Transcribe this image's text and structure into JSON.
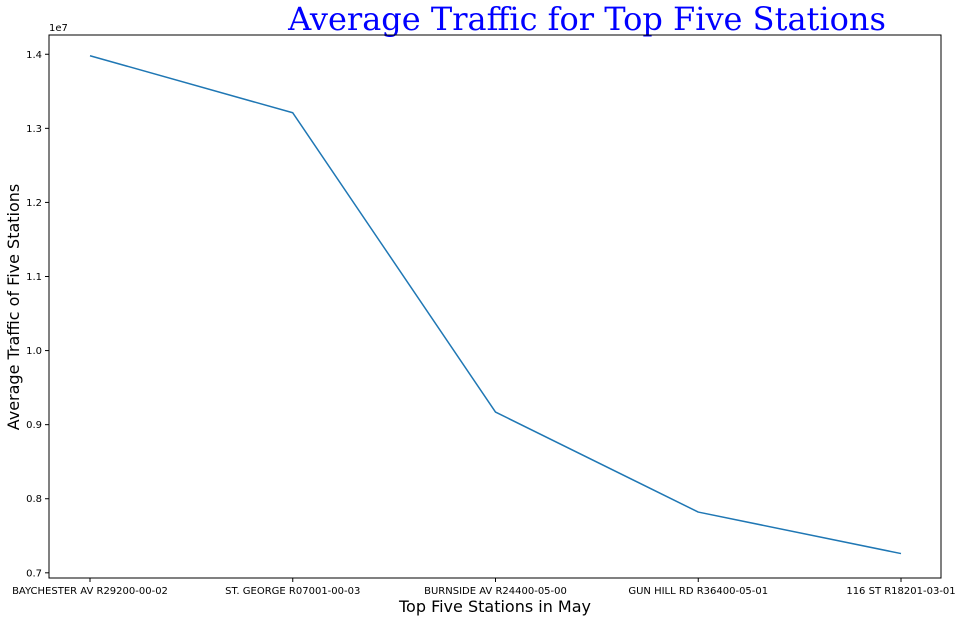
{
  "chart_data": {
    "type": "line",
    "title": "Average Traffic for Top Five Stations",
    "title_color": "#0000ff",
    "xlabel": "Top Five Stations in May",
    "ylabel": "Average Traffic of Five Stations",
    "y_offset_label": "1e7",
    "categories": [
      "BAYCHESTER AV R29200-00-02",
      "ST. GEORGE R07001-00-03",
      "BURNSIDE AV R24400-05-00",
      "GUN HILL RD R36400-05-01",
      "116 ST R18201-03-01"
    ],
    "series": [
      {
        "values": [
          13980000,
          13210000,
          9170000,
          7820000,
          7260000
        ],
        "color": "#1f77b4"
      }
    ],
    "ylim": [
      6930000,
      14260000
    ],
    "yticks": [
      7000000,
      8000000,
      9000000,
      10000000,
      11000000,
      12000000,
      13000000,
      14000000
    ],
    "ytick_labels": [
      "0.7",
      "0.8",
      "0.9",
      "1.0",
      "1.1",
      "1.2",
      "1.3",
      "1.4"
    ],
    "grid": false,
    "legend": false
  }
}
